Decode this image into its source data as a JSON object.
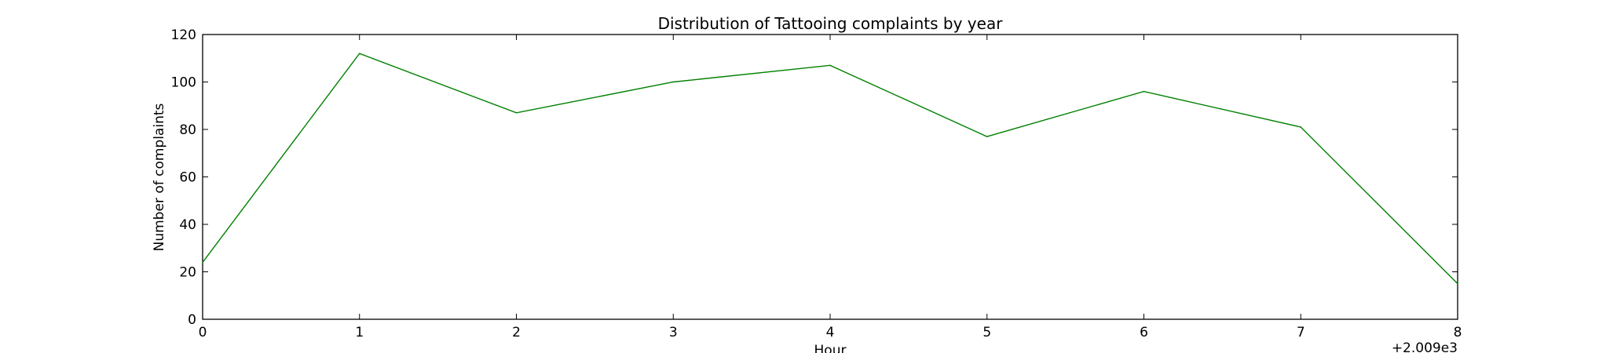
{
  "chart_data": {
    "type": "line",
    "title": "Distribution of  Tattooing complaints by year",
    "xlabel": "Hour",
    "ylabel": "Number of complaints",
    "x_offset_label": "+2.009e3",
    "x": [
      0,
      1,
      2,
      3,
      4,
      5,
      6,
      7,
      8
    ],
    "xticks": [
      "0",
      "1",
      "2",
      "3",
      "4",
      "5",
      "6",
      "7",
      "8"
    ],
    "yticks": [
      "0",
      "20",
      "40",
      "60",
      "80",
      "100",
      "120"
    ],
    "xlim": [
      0,
      8
    ],
    "ylim": [
      0,
      120
    ],
    "grid": false,
    "series": [
      {
        "values": [
          24,
          112,
          87,
          100,
          107,
          77,
          96,
          81,
          15
        ],
        "color": "#008000"
      }
    ]
  }
}
